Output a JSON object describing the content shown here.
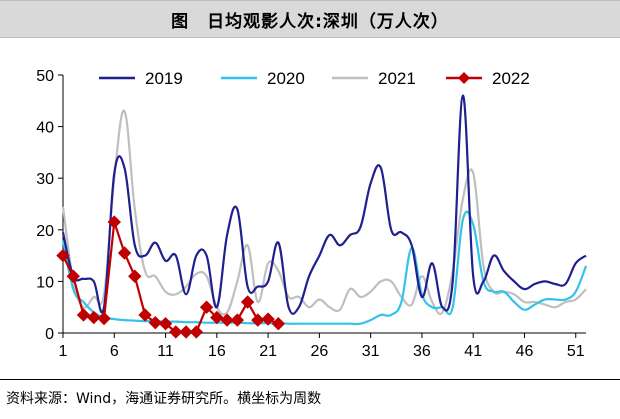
{
  "chart_data": {
    "type": "line",
    "title": "图　日均观影人次:深圳（万人次）",
    "xlabel": "",
    "ylabel": "",
    "xlim": [
      1,
      52
    ],
    "ylim": [
      0,
      50
    ],
    "x_ticks": [
      1,
      6,
      11,
      16,
      21,
      26,
      31,
      36,
      41,
      46,
      51
    ],
    "y_ticks": [
      0,
      10,
      20,
      30,
      40,
      50
    ],
    "legend_position": "top",
    "series": [
      {
        "name": "2019",
        "color": "#1f1f8f",
        "marker": "none",
        "x": [
          1,
          2,
          3,
          4,
          5,
          6,
          7,
          8,
          9,
          10,
          11,
          12,
          13,
          14,
          15,
          16,
          17,
          18,
          19,
          20,
          21,
          22,
          23,
          24,
          25,
          26,
          27,
          28,
          29,
          30,
          31,
          32,
          33,
          34,
          35,
          36,
          37,
          38,
          39,
          40,
          41,
          42,
          43,
          44,
          45,
          46,
          47,
          48,
          49,
          50,
          51,
          52
        ],
        "values": [
          19.5,
          11,
          10.5,
          10,
          5,
          31,
          32,
          17,
          15,
          17.5,
          14,
          15,
          7.5,
          15,
          15,
          5,
          19,
          24,
          9,
          9,
          10,
          17.5,
          5,
          5,
          11,
          15,
          19,
          17,
          19,
          20.5,
          29,
          32,
          20,
          19.5,
          17,
          7,
          13.5,
          5,
          10,
          46,
          11,
          10,
          15,
          12,
          10,
          8.5,
          9.5,
          10,
          9.5,
          9.5,
          13.5,
          15
        ]
      },
      {
        "name": "2020",
        "color": "#33c3ea",
        "marker": "none",
        "x": [
          1,
          2,
          3,
          4,
          5,
          6,
          7,
          8,
          9,
          10,
          11,
          12,
          13,
          14,
          15,
          16,
          17,
          18,
          19,
          20,
          21,
          22,
          23,
          24,
          25,
          26,
          27,
          28,
          29,
          30,
          31,
          32,
          33,
          34,
          35,
          36,
          37,
          38,
          39,
          40,
          41,
          42,
          43,
          44,
          45,
          46,
          47,
          48,
          49,
          50,
          51,
          52
        ],
        "values": [
          18,
          8.5,
          6,
          4,
          3,
          2.7,
          2.5,
          2.4,
          2.3,
          2.3,
          2.2,
          2.2,
          2.1,
          2.1,
          2.0,
          2.0,
          2.0,
          2.0,
          1.9,
          1.9,
          1.9,
          1.9,
          1.8,
          1.8,
          1.8,
          1.8,
          1.8,
          1.8,
          1.8,
          1.8,
          2.5,
          3.5,
          3.5,
          6,
          16.5,
          7.5,
          5,
          5,
          5,
          22,
          21,
          10,
          8,
          8,
          6,
          4.5,
          5.5,
          6.5,
          6.5,
          6.5,
          8,
          13
        ]
      },
      {
        "name": "2021",
        "color": "#bfbfbf",
        "marker": "none",
        "x": [
          1,
          2,
          3,
          4,
          5,
          6,
          7,
          8,
          9,
          10,
          11,
          12,
          13,
          14,
          15,
          16,
          17,
          18,
          19,
          20,
          21,
          22,
          23,
          24,
          25,
          26,
          27,
          28,
          29,
          30,
          31,
          32,
          33,
          34,
          35,
          36,
          37,
          38,
          39,
          40,
          41,
          42,
          43,
          44,
          45,
          46,
          47,
          48,
          49,
          50,
          51,
          52
        ],
        "values": [
          24.5,
          10,
          5,
          7,
          7.5,
          30,
          43,
          24,
          12,
          11,
          8,
          7.5,
          9,
          11.5,
          11,
          5,
          4,
          10,
          17,
          6,
          13.5,
          12,
          7,
          7,
          5,
          6.5,
          5,
          4.5,
          8.5,
          7,
          8,
          10,
          10,
          7,
          5.5,
          11,
          6,
          4,
          12,
          26,
          31,
          13,
          8,
          8,
          7.5,
          6,
          6,
          5.5,
          5,
          6,
          6.5,
          8.5
        ]
      },
      {
        "name": "2022",
        "color": "#c00000",
        "marker": "diamond",
        "x": [
          1,
          2,
          3,
          4,
          5,
          6,
          7,
          8,
          9,
          10,
          11,
          12,
          13,
          14,
          15,
          16,
          17,
          18,
          19,
          20,
          21,
          22
        ],
        "values": [
          15,
          11,
          3.5,
          3,
          2.8,
          21.5,
          15.5,
          11,
          3.5,
          2,
          1.8,
          0.2,
          0.2,
          0.2,
          5,
          3,
          2.5,
          2.5,
          6,
          2.5,
          2.7,
          1.8
        ]
      }
    ]
  },
  "footer": {
    "source": "资料来源：Wind，海通证券研究所。横坐标为周数"
  }
}
